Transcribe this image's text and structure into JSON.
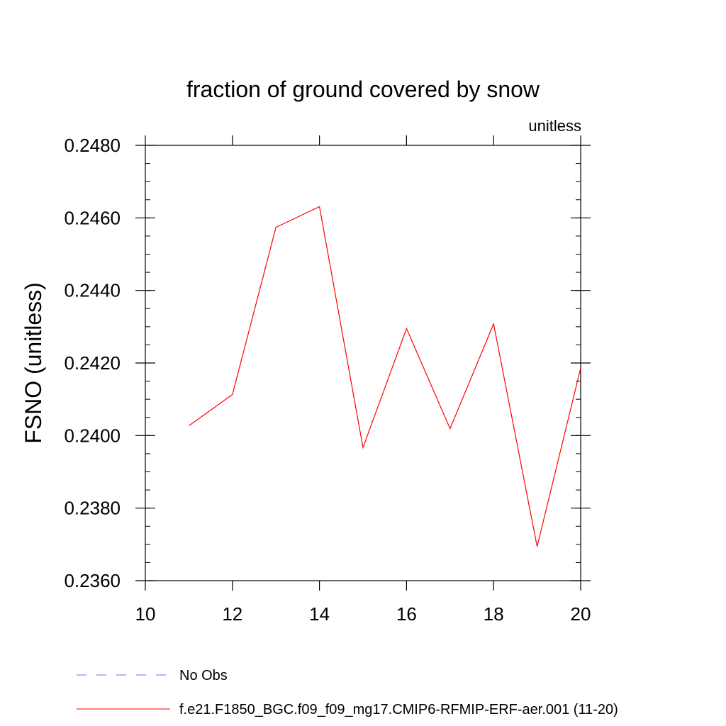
{
  "chart_data": {
    "type": "line",
    "title": "fraction of ground covered by snow",
    "units_label": "unitless",
    "ylabel": "FSNO  (unitless)",
    "xlabel": "",
    "xlim": [
      10,
      20
    ],
    "ylim": [
      0.236,
      0.248
    ],
    "x_ticks": [
      10,
      12,
      14,
      16,
      18,
      20
    ],
    "x_tick_labels": [
      "10",
      "12",
      "14",
      "16",
      "18",
      "20"
    ],
    "y_ticks": [
      0.236,
      0.238,
      0.24,
      0.242,
      0.244,
      0.246,
      0.248
    ],
    "y_tick_labels": [
      "0.2360",
      "0.2380",
      "0.2400",
      "0.2420",
      "0.2440",
      "0.2460",
      "0.2480"
    ],
    "grid": false,
    "legend_position": "bottom",
    "series": [
      {
        "name": "f.e21.F1850_BGC.f09_f09_mg17.CMIP6-RFMIP-ERF-aer.001 (11-20)",
        "color": "#ff0000",
        "x": [
          11,
          12,
          13,
          14,
          15,
          16,
          17,
          18,
          19,
          20
        ],
        "values": [
          0.24027,
          0.24113,
          0.24574,
          0.24631,
          0.23967,
          0.24295,
          0.24019,
          0.24308,
          0.23694,
          0.24186
        ]
      }
    ],
    "legend": [
      {
        "label": "No Obs",
        "color": "#7b68ee",
        "style": "dashed"
      },
      {
        "label": "f.e21.F1850_BGC.f09_f09_mg17.CMIP6-RFMIP-ERF-aer.001 (11-20)",
        "color": "#ff0000",
        "style": "solid"
      }
    ]
  }
}
